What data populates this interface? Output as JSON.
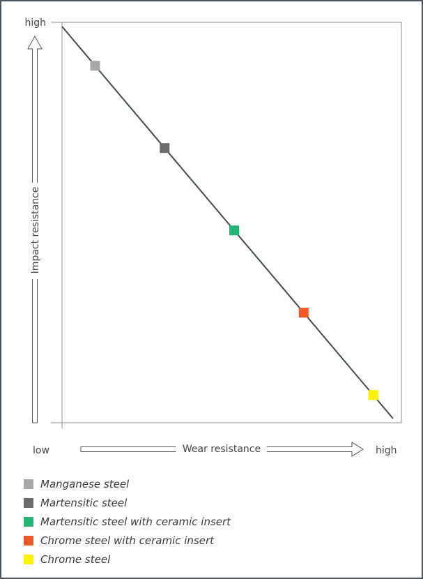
{
  "chart_data": {
    "type": "line",
    "xlabel": "Wear resistance",
    "ylabel": "Impact resistance",
    "x_tick_labels": {
      "low": "low",
      "high": "high"
    },
    "y_tick_labels": {
      "high": "high"
    },
    "xlim": [
      0,
      1
    ],
    "ylim": [
      0,
      1
    ],
    "line": {
      "x": [
        0,
        1
      ],
      "y": [
        1,
        0
      ],
      "color": "#3f4b55"
    },
    "series": [
      {
        "name": "Manganese steel",
        "x": [
          0.1
        ],
        "y": [
          0.9
        ],
        "color": "#a6a8aa"
      },
      {
        "name": "Martensitic steel",
        "x": [
          0.31
        ],
        "y": [
          0.69
        ],
        "color": "#6b6c6e"
      },
      {
        "name": "Martensitic steel with ceramic insert",
        "x": [
          0.52
        ],
        "y": [
          0.48
        ],
        "color": "#22b573"
      },
      {
        "name": "Chrome steel with ceramic insert",
        "x": [
          0.73
        ],
        "y": [
          0.27
        ],
        "color": "#f05a28"
      },
      {
        "name": "Chrome steel",
        "x": [
          0.94
        ],
        "y": [
          0.06
        ],
        "color": "#fff200"
      }
    ],
    "grid": false,
    "legend_position": "bottom-left"
  }
}
